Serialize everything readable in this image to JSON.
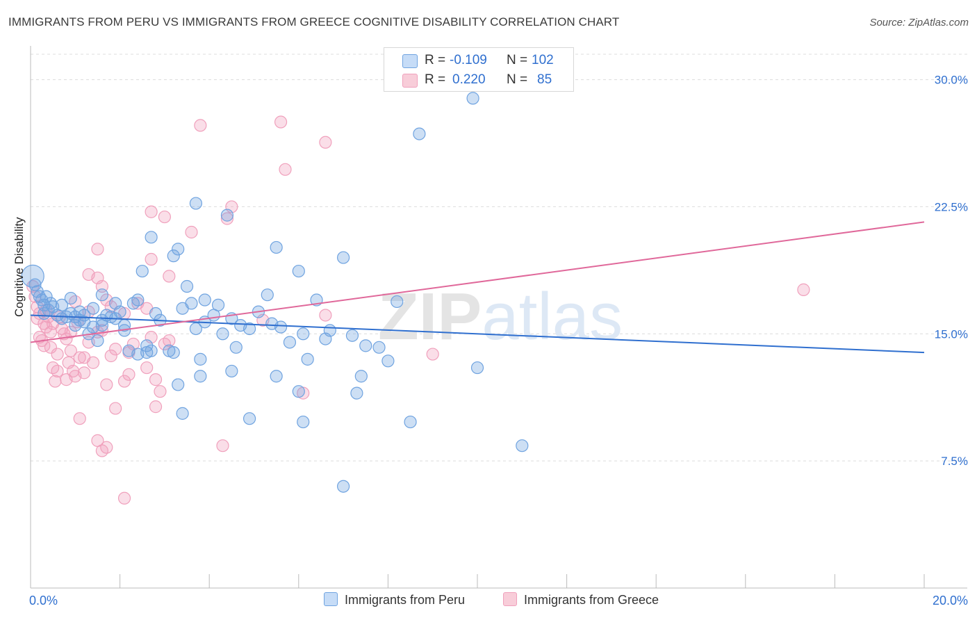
{
  "title": "IMMIGRANTS FROM PERU VS IMMIGRANTS FROM GREECE COGNITIVE DISABILITY CORRELATION CHART",
  "source": "Source: ZipAtlas.com",
  "watermark": "ZIPatlas",
  "legend": {
    "r_label": "R =",
    "n_label": "N =",
    "rows": [
      {
        "r": "-0.109",
        "n": "102"
      },
      {
        "r": "0.220",
        "n": "85"
      }
    ]
  },
  "chart_data": {
    "type": "scatter",
    "title": "IMMIGRANTS FROM PERU VS IMMIGRANTS FROM GREECE COGNITIVE DISABILITY CORRELATION CHART",
    "xlabel": "",
    "ylabel": "Cognitive Disability",
    "xlim": [
      0,
      20
    ],
    "ylim": [
      0,
      31.5
    ],
    "x_tick_labels": [
      "0.0%",
      "20.0%"
    ],
    "y_ticks": [
      7.5,
      15.0,
      22.5,
      30.0
    ],
    "y_tick_labels": [
      "7.5%",
      "15.0%",
      "22.5%",
      "30.0%"
    ],
    "grid": true,
    "legend_position": "top-center",
    "colors": {
      "peru": "#6fa3e0",
      "greece": "#f0a0bc",
      "peru_line": "#2f6fcf",
      "greece_line": "#e0689a",
      "tick_text": "#2f6fcf"
    },
    "series": [
      {
        "name": "Immigrants from Peru",
        "trend": {
          "x": [
            0,
            20
          ],
          "y": [
            16.1,
            13.9
          ]
        },
        "points": [
          [
            0.05,
            18.4
          ],
          [
            0.1,
            17.9
          ],
          [
            0.15,
            17.5
          ],
          [
            0.2,
            17.2
          ],
          [
            0.25,
            17.0
          ],
          [
            0.3,
            16.7
          ],
          [
            0.35,
            17.2
          ],
          [
            0.4,
            16.4
          ],
          [
            0.45,
            16.8
          ],
          [
            0.5,
            16.6
          ],
          [
            0.6,
            16.1
          ],
          [
            0.7,
            16.7
          ],
          [
            0.8,
            16.0
          ],
          [
            0.9,
            16.2
          ],
          [
            1.0,
            15.5
          ],
          [
            1.0,
            16.0
          ],
          [
            1.1,
            16.3
          ],
          [
            1.2,
            16.1
          ],
          [
            1.3,
            15.0
          ],
          [
            1.4,
            15.4
          ],
          [
            1.5,
            14.6
          ],
          [
            1.6,
            15.8
          ],
          [
            1.7,
            16.1
          ],
          [
            1.8,
            16.0
          ],
          [
            1.9,
            15.9
          ],
          [
            2.0,
            16.3
          ],
          [
            2.1,
            15.2
          ],
          [
            2.2,
            14.0
          ],
          [
            2.3,
            16.8
          ],
          [
            2.4,
            17.0
          ],
          [
            2.4,
            13.8
          ],
          [
            2.6,
            14.3
          ],
          [
            2.7,
            14.0
          ],
          [
            2.8,
            16.2
          ],
          [
            2.9,
            15.8
          ],
          [
            3.1,
            14.0
          ],
          [
            3.2,
            13.9
          ],
          [
            3.4,
            16.5
          ],
          [
            3.5,
            17.8
          ],
          [
            3.6,
            16.8
          ],
          [
            3.7,
            15.3
          ],
          [
            3.8,
            13.5
          ],
          [
            3.9,
            17.0
          ],
          [
            4.1,
            16.1
          ],
          [
            4.2,
            16.7
          ],
          [
            4.3,
            15.0
          ],
          [
            4.5,
            15.9
          ],
          [
            4.6,
            14.2
          ],
          [
            4.7,
            15.5
          ],
          [
            4.9,
            15.3
          ],
          [
            5.1,
            16.3
          ],
          [
            5.3,
            17.3
          ],
          [
            5.4,
            15.6
          ],
          [
            5.6,
            15.4
          ],
          [
            5.8,
            14.5
          ],
          [
            6.0,
            18.7
          ],
          [
            6.1,
            15.0
          ],
          [
            6.4,
            17.0
          ],
          [
            6.6,
            14.7
          ],
          [
            6.7,
            15.2
          ],
          [
            7.0,
            19.5
          ],
          [
            7.2,
            14.9
          ],
          [
            7.5,
            14.3
          ],
          [
            8.0,
            13.4
          ],
          [
            8.2,
            16.9
          ],
          [
            2.7,
            20.7
          ],
          [
            3.2,
            19.6
          ],
          [
            1.6,
            17.3
          ],
          [
            2.1,
            15.5
          ],
          [
            3.3,
            20.0
          ],
          [
            2.5,
            18.7
          ],
          [
            1.9,
            16.8
          ],
          [
            3.7,
            22.7
          ],
          [
            4.4,
            22.0
          ],
          [
            5.5,
            20.1
          ],
          [
            0.9,
            17.1
          ],
          [
            1.4,
            16.5
          ],
          [
            2.6,
            13.9
          ],
          [
            1.2,
            15.7
          ],
          [
            0.3,
            16.2
          ],
          [
            9.9,
            28.9
          ],
          [
            8.7,
            26.8
          ],
          [
            6.2,
            13.5
          ],
          [
            7.4,
            12.5
          ],
          [
            5.5,
            12.5
          ],
          [
            4.5,
            12.8
          ],
          [
            3.8,
            12.5
          ],
          [
            3.3,
            12.0
          ],
          [
            7.3,
            11.5
          ],
          [
            6.0,
            11.6
          ],
          [
            4.9,
            10.0
          ],
          [
            3.4,
            10.3
          ],
          [
            6.1,
            9.8
          ],
          [
            8.5,
            9.8
          ],
          [
            11.0,
            8.4
          ],
          [
            7.0,
            6.0
          ],
          [
            1.6,
            15.5
          ],
          [
            0.7,
            15.9
          ],
          [
            1.1,
            15.8
          ],
          [
            3.9,
            15.7
          ],
          [
            10.0,
            13.0
          ],
          [
            7.8,
            14.2
          ]
        ]
      },
      {
        "name": "Immigrants from Greece",
        "trend": {
          "x": [
            0,
            20
          ],
          "y": [
            14.5,
            21.6
          ]
        },
        "points": [
          [
            0.05,
            17.8
          ],
          [
            0.1,
            17.2
          ],
          [
            0.15,
            16.6
          ],
          [
            0.2,
            16.2
          ],
          [
            0.25,
            14.6
          ],
          [
            0.3,
            14.3
          ],
          [
            0.35,
            16.4
          ],
          [
            0.4,
            16.0
          ],
          [
            0.45,
            15.1
          ],
          [
            0.5,
            13.0
          ],
          [
            0.55,
            12.2
          ],
          [
            0.6,
            12.8
          ],
          [
            0.7,
            15.3
          ],
          [
            0.75,
            15.0
          ],
          [
            0.8,
            14.7
          ],
          [
            0.9,
            14.0
          ],
          [
            0.95,
            12.8
          ],
          [
            1.0,
            12.5
          ],
          [
            1.1,
            13.6
          ],
          [
            1.2,
            12.7
          ],
          [
            1.3,
            14.5
          ],
          [
            1.4,
            13.3
          ],
          [
            1.5,
            15.1
          ],
          [
            1.6,
            15.2
          ],
          [
            1.7,
            12.0
          ],
          [
            1.8,
            13.7
          ],
          [
            1.9,
            14.1
          ],
          [
            2.1,
            12.2
          ],
          [
            2.2,
            12.6
          ],
          [
            2.3,
            14.4
          ],
          [
            2.4,
            16.8
          ],
          [
            2.6,
            13.0
          ],
          [
            2.7,
            14.8
          ],
          [
            2.8,
            12.3
          ],
          [
            2.9,
            11.6
          ],
          [
            1.5,
            18.3
          ],
          [
            1.6,
            17.8
          ],
          [
            1.3,
            18.5
          ],
          [
            1.5,
            20.0
          ],
          [
            1.8,
            16.6
          ],
          [
            2.7,
            19.4
          ],
          [
            3.1,
            18.4
          ],
          [
            3.0,
            21.9
          ],
          [
            2.7,
            22.2
          ],
          [
            3.6,
            21.0
          ],
          [
            4.4,
            21.8
          ],
          [
            4.5,
            22.5
          ],
          [
            3.8,
            27.3
          ],
          [
            5.7,
            24.7
          ],
          [
            5.6,
            27.5
          ],
          [
            6.6,
            26.3
          ],
          [
            1.9,
            10.6
          ],
          [
            1.1,
            10.0
          ],
          [
            1.5,
            8.7
          ],
          [
            1.6,
            8.1
          ],
          [
            1.7,
            8.3
          ],
          [
            2.1,
            5.3
          ],
          [
            2.8,
            10.7
          ],
          [
            4.3,
            8.4
          ],
          [
            6.1,
            11.5
          ],
          [
            3.0,
            14.4
          ],
          [
            2.1,
            16.2
          ],
          [
            2.6,
            16.5
          ],
          [
            1.0,
            16.9
          ],
          [
            0.3,
            15.6
          ],
          [
            0.6,
            13.8
          ],
          [
            0.9,
            15.1
          ],
          [
            1.3,
            16.3
          ],
          [
            5.2,
            15.8
          ],
          [
            6.6,
            16.1
          ],
          [
            9.0,
            13.8
          ],
          [
            17.3,
            17.6
          ],
          [
            1.2,
            13.6
          ],
          [
            0.8,
            12.3
          ],
          [
            0.5,
            15.6
          ],
          [
            0.2,
            14.8
          ],
          [
            0.35,
            15.4
          ],
          [
            0.65,
            16.0
          ],
          [
            1.05,
            15.7
          ],
          [
            0.15,
            15.9
          ],
          [
            1.7,
            17.0
          ],
          [
            2.2,
            13.9
          ],
          [
            3.1,
            14.6
          ],
          [
            0.45,
            14.2
          ],
          [
            0.85,
            13.3
          ]
        ]
      }
    ]
  },
  "bottom_legend": [
    "Immigrants from Peru",
    "Immigrants from Greece"
  ]
}
